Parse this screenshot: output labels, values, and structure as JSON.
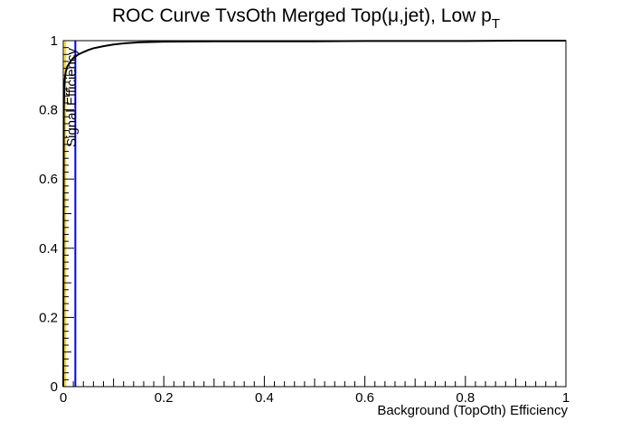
{
  "chart_data": {
    "type": "line",
    "title": "ROC Curve TvsOth Merged Top(μ,jet), Low p",
    "title_subscript": "T",
    "xlabel": "Background (TopOth) Efficiency",
    "ylabel": "Signal Efficiency",
    "xlim": [
      0,
      1
    ],
    "ylim": [
      0,
      1
    ],
    "grid": false,
    "x_ticks": [
      {
        "v": 0,
        "label": "0"
      },
      {
        "v": 0.2,
        "label": "0.2"
      },
      {
        "v": 0.4,
        "label": "0.4"
      },
      {
        "v": 0.6,
        "label": "0.6"
      },
      {
        "v": 0.8,
        "label": "0.8"
      },
      {
        "v": 1,
        "label": "1"
      }
    ],
    "y_ticks": [
      {
        "v": 0,
        "label": "0"
      },
      {
        "v": 0.2,
        "label": "0.2"
      },
      {
        "v": 0.4,
        "label": "0.4"
      },
      {
        "v": 0.6,
        "label": "0.6"
      },
      {
        "v": 0.8,
        "label": "0.8"
      },
      {
        "v": 1,
        "label": "1"
      }
    ],
    "series": [
      {
        "color": "#000000",
        "x": [
          0.0,
          0.001,
          0.002,
          0.003,
          0.005,
          0.008,
          0.012,
          0.016,
          0.02,
          0.025,
          0.03,
          0.04,
          0.05,
          0.06,
          0.08,
          0.1,
          0.12,
          0.15,
          0.2,
          0.3,
          0.4,
          0.5,
          0.6,
          0.7,
          0.8,
          0.9,
          1.0
        ],
        "y": [
          0.0,
          0.8,
          0.86,
          0.89,
          0.91,
          0.925,
          0.935,
          0.943,
          0.95,
          0.955,
          0.96,
          0.967,
          0.973,
          0.978,
          0.984,
          0.989,
          0.992,
          0.995,
          0.997,
          0.998,
          0.998,
          0.998,
          0.999,
          0.999,
          0.999,
          1.0,
          1.0
        ]
      }
    ],
    "vertical_lines": [
      {
        "x": 0.004,
        "color": "#ffd700"
      },
      {
        "x": 0.024,
        "color": "#0000ff"
      }
    ]
  }
}
